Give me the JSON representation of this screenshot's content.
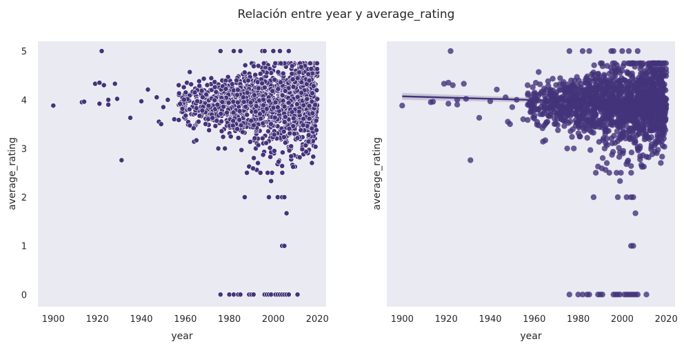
{
  "figure": {
    "title": "Relación entre year y average_rating",
    "colors": {
      "background": "#eaeaf2",
      "point": "#44337a",
      "point_edge": "#ffffff",
      "regression": "#44337a"
    }
  },
  "chart_data": [
    {
      "type": "scatter",
      "xlabel": "year",
      "ylabel": "average_rating",
      "xlim": [
        1893,
        2024
      ],
      "ylim": [
        -0.25,
        5.2
      ],
      "xticks": [
        "1900",
        "1920",
        "1940",
        "1960",
        "1980",
        "2000",
        "2020"
      ],
      "yticks": [
        "0",
        "1",
        "2",
        "3",
        "4",
        "5"
      ],
      "grid": false,
      "points": [
        [
          1900,
          3.88
        ],
        [
          1913,
          3.95
        ],
        [
          1914,
          3.96
        ],
        [
          1919,
          4.33
        ],
        [
          1921,
          3.92
        ],
        [
          1921,
          4.35
        ],
        [
          1922,
          5.0
        ],
        [
          1923,
          4.3
        ],
        [
          1925,
          3.9
        ],
        [
          1925,
          4.0
        ],
        [
          1928,
          4.33
        ],
        [
          1929,
          4.02
        ],
        [
          1931,
          2.76
        ],
        [
          1935,
          3.63
        ],
        [
          1940,
          3.97
        ],
        [
          1943,
          4.21
        ],
        [
          1947,
          4.05
        ],
        [
          1948,
          3.55
        ],
        [
          1949,
          3.5
        ],
        [
          1950,
          3.85
        ],
        [
          1952,
          4.0
        ],
        [
          1955,
          3.6
        ],
        [
          1957,
          4.3
        ],
        [
          1960,
          3.9
        ],
        [
          1962,
          4.57
        ],
        [
          1964,
          3.14
        ],
        [
          1967,
          4.1
        ],
        [
          1975,
          3.0
        ],
        [
          1976,
          5.0
        ],
        [
          1978,
          3.0
        ],
        [
          1982,
          5.0
        ],
        [
          1985,
          5.0
        ],
        [
          1987,
          2.0
        ],
        [
          1988,
          2.5
        ],
        [
          1989,
          2.63
        ],
        [
          1992,
          3.0
        ],
        [
          1993,
          2.7
        ],
        [
          1995,
          5.0
        ],
        [
          1996,
          5.0
        ],
        [
          1998,
          2.0
        ],
        [
          1999,
          2.33
        ],
        [
          2000,
          5.0
        ],
        [
          2002,
          2.0
        ],
        [
          2003,
          5.0
        ],
        [
          2004,
          2.0
        ],
        [
          2004,
          1.0
        ],
        [
          2005,
          1.0
        ],
        [
          2005,
          2.0
        ],
        [
          2006,
          1.67
        ],
        [
          2007,
          5.0
        ],
        [
          2008,
          3.0
        ],
        [
          2011,
          2.83
        ],
        [
          2017,
          3.13
        ],
        [
          2018,
          3.45
        ],
        [
          2019,
          4.5
        ],
        [
          2020,
          3.9
        ],
        [
          1976,
          0
        ],
        [
          1980,
          0
        ],
        [
          1982,
          0
        ],
        [
          1984,
          0
        ],
        [
          1985,
          0
        ],
        [
          1989,
          0
        ],
        [
          1990,
          0
        ],
        [
          1991,
          0
        ],
        [
          1996,
          0
        ],
        [
          1997,
          0
        ],
        [
          1998,
          0
        ],
        [
          1999,
          0
        ],
        [
          2001,
          0
        ],
        [
          2002,
          0
        ],
        [
          2003,
          0
        ],
        [
          2004,
          0
        ],
        [
          2005,
          0
        ],
        [
          2006,
          0
        ],
        [
          2007,
          0
        ],
        [
          2011,
          0
        ]
      ],
      "cloud": {
        "x_range": [
          1955,
          2020
        ],
        "mean_rating": 3.93
      }
    },
    {
      "type": "scatter",
      "xlabel": "year",
      "ylabel": "average_rating",
      "xlim": [
        1893,
        2024
      ],
      "ylim": [
        -0.25,
        5.2
      ],
      "xticks": [
        "1900",
        "1920",
        "1940",
        "1960",
        "1980",
        "2000",
        "2020"
      ],
      "yticks": [],
      "grid": false,
      "regression": {
        "x": [
          1900,
          2020
        ],
        "y": [
          4.07,
          3.92
        ]
      },
      "points_from": 0
    }
  ]
}
